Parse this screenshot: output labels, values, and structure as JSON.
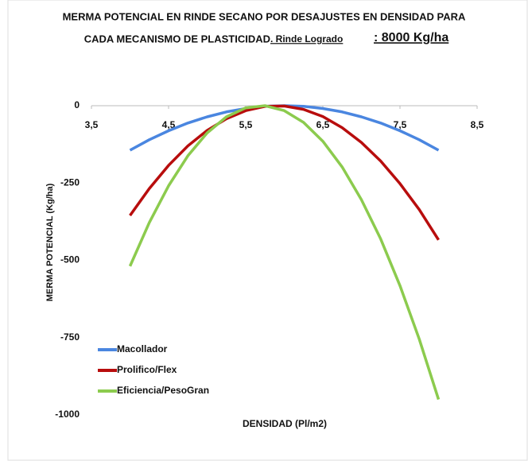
{
  "chart_data": {
    "type": "line",
    "title": [
      "MERMA POTENCIAL EN RINDE SECANO POR DESAJUSTES EN  DENSIDAD PARA",
      "CADA  MECANISMO DE PLASTICIDAD"
    ],
    "subtitle": ". Rinde Logrado",
    "annotation": ": 8000 Kg/ha",
    "xlabel": "DENSIDAD (Pl/m2)",
    "ylabel": "MERMA POTENCIAL (Kg/ha)",
    "x": [
      4,
      4.25,
      4.5,
      4.75,
      5,
      5.25,
      5.5,
      5.75,
      6,
      6.25,
      6.5,
      6.75,
      7,
      7.25,
      7.5,
      7.75,
      8
    ],
    "series": [
      {
        "name": "Macollador",
        "color": "#4a86e0",
        "values": [
          -144,
          -110,
          -81,
          -56,
          -36,
          -20,
          -9,
          -2,
          0,
          -2,
          -9,
          -20,
          -36,
          -56,
          -81,
          -110,
          -144
        ]
      },
      {
        "name": "Prolifico/Flex",
        "color": "#b80d0d",
        "values": [
          -355,
          -268,
          -193,
          -130,
          -80,
          -42,
          -16,
          -2,
          -1,
          -12,
          -35,
          -71,
          -119,
          -179,
          -252,
          -336,
          -434
        ]
      },
      {
        "name": "Eficiencia/PesoGran",
        "color": "#8ccb4e",
        "values": [
          -519,
          -378,
          -259,
          -162,
          -88,
          -36,
          -7,
          0,
          -16,
          -54,
          -115,
          -198,
          -304,
          -431,
          -582,
          -755,
          -950
        ]
      }
    ],
    "xlim": [
      3.5,
      8.5
    ],
    "xticks": [
      {
        "value": 3.5,
        "label": "3,5"
      },
      {
        "value": 4.5,
        "label": "4,5"
      },
      {
        "value": 5.5,
        "label": "5,5"
      },
      {
        "value": 6.5,
        "label": "6,5"
      },
      {
        "value": 7.5,
        "label": "7,5"
      },
      {
        "value": 8.5,
        "label": "8,5"
      }
    ],
    "ylim": [
      -1000,
      0
    ],
    "yticks": [
      0,
      -250,
      -500,
      -750,
      -1000
    ],
    "grid": false,
    "legend": "lower left"
  }
}
